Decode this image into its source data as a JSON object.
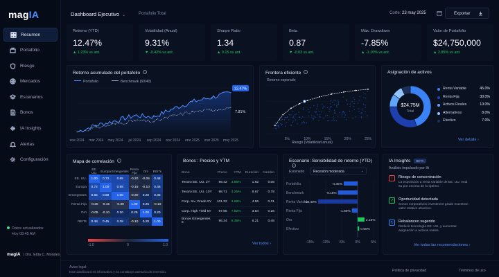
{
  "app": {
    "logo_main": "mag",
    "logo_accent": "IA"
  },
  "sidebar": {
    "items": [
      {
        "label": "Resumen",
        "icon": "grid-icon"
      },
      {
        "label": "Portafolio",
        "icon": "briefcase-icon"
      },
      {
        "label": "Riesgo",
        "icon": "shield-icon"
      },
      {
        "label": "Mercados",
        "icon": "globe-icon"
      },
      {
        "label": "Escenarios",
        "icon": "layers-icon"
      },
      {
        "label": "Bonos",
        "icon": "document-icon"
      },
      {
        "label": "IA Insights",
        "icon": "sparkle-icon"
      },
      {
        "label": "Alertas",
        "icon": "bell-icon"
      },
      {
        "label": "Configuración",
        "icon": "gear-icon"
      }
    ],
    "status_line1": "Datos actualizados",
    "status_line2": "Hoy 08:45 AM",
    "user_brand": "magIA",
    "user_name": "Dra. Elda C. Morales"
  },
  "topbar": {
    "title": "Dashboard Ejecutivo",
    "subtitle": "Portafolio Total",
    "date_label": "Corte:",
    "date_value": "23 may 2025",
    "export_label": "Exportar"
  },
  "kpis": [
    {
      "label": "Retorno (YTD)",
      "value": "12.47%",
      "change": "▲ 1.23% vs ant."
    },
    {
      "label": "Volatilidad (Anual)",
      "value": "9.31%",
      "change": "▼ -0.42% vs ant."
    },
    {
      "label": "Sharpe Ratio",
      "value": "1.34",
      "change": "▲ 0.15 vs ant."
    },
    {
      "label": "Beta",
      "value": "0.87",
      "change": "▼ -0.03 vs ant."
    },
    {
      "label": "Máx. Drawdown",
      "value": "-7.85%",
      "change": "▲ -1.10% vs ant."
    },
    {
      "label": "Valor de Portafolio",
      "value": "$24,750,000",
      "change": "▲ 2.85% vs ant."
    }
  ],
  "cumulative": {
    "title": "Retorno acumulado del portafolio",
    "legend_a": "Portafolio",
    "legend_b": "Benchmark (60/40)",
    "end_a": "12.47%",
    "end_b": "7.81%"
  },
  "frontier": {
    "title": "Frontera eficiente",
    "ylabel": "Retorno esperado",
    "xlabel": "Riesgo (Volatilidad anual)"
  },
  "allocation": {
    "title": "Asignación de activos",
    "center_value": "$24.75M",
    "center_label": "Total",
    "link": "Ver detalle ›"
  },
  "correlation": {
    "title": "Mapa de correlación",
    "cols": [
      "EE. UU.",
      "Europa",
      "Emergentes",
      "Renta Fija",
      "Oro",
      "REITs"
    ],
    "rows": [
      {
        "label": "EE. UU.",
        "values": [
          "1.00",
          "0.72",
          "0.65",
          "-0.20",
          "-0.05",
          "0.48"
        ]
      },
      {
        "label": "Europa",
        "values": [
          "0.72",
          "1.00",
          "0.68",
          "-0.15",
          "-0.10",
          "0.45"
        ]
      },
      {
        "label": "Emergentes",
        "values": [
          "0.65",
          "0.68",
          "1.00",
          "-0.30",
          "0.20",
          "0.35"
        ]
      },
      {
        "label": "Renta Fija",
        "values": [
          "-0.20",
          "-0.15",
          "-0.30",
          "1.00",
          "0.25",
          "-0.10"
        ]
      },
      {
        "label": "Oro",
        "values": [
          "-0.05",
          "-0.10",
          "0.20",
          "0.25",
          "1.00",
          "0.20"
        ]
      },
      {
        "label": "REITs",
        "values": [
          "0.48",
          "0.45",
          "0.35",
          "-0.10",
          "0.20",
          "1.00"
        ]
      }
    ],
    "scale_min": "-1.0",
    "scale_mid": "0",
    "scale_max": "1.0"
  },
  "bonds": {
    "title": "Bonos : Precios y YTM",
    "headers": [
      "Bono",
      "Precio",
      "YTM",
      "Duración",
      "Cambio"
    ],
    "rows": [
      [
        "Tesoro EE. UU. 2Y",
        "99.42",
        "3.85%",
        "1.92",
        "0.08"
      ],
      [
        "Tesoro EE. UU. 10Y",
        "98.71",
        "4.25%",
        "8.67",
        "0.78"
      ],
      [
        "Corp. Inv. Grade 5Y",
        "101.32",
        "4.68%",
        "4.56",
        "0.31"
      ],
      [
        "Corp. High Yield 5Y",
        "97.85",
        "7.92%",
        "3.84",
        "0.26"
      ],
      [
        "Bonos Emergentes 5",
        "96.34",
        "6.35%",
        "6.21",
        "0.48"
      ]
    ],
    "link": "Ver todos ›"
  },
  "scenario": {
    "title": "Escenario: Sensibilidad de retorno (YTD)",
    "select_label": "Escenario",
    "select_value": "Recesión moderada"
  },
  "insights": {
    "title": "IA Insights",
    "badge": "BETA",
    "subtitle": "Análisis impulsado por IA",
    "items": [
      {
        "title": "Riesgo de concentración",
        "line1": "La exposición a renta variable de EE. UU. está",
        "line2": "61 por encima de lo óptimo.",
        "icon": "alert-icon"
      },
      {
        "title": "Oportunidad detectada",
        "line1": "Sonos corporativos investment grade muestran",
        "line2": "valor relativo atractivo.",
        "icon": "trend-icon"
      },
      {
        "title": "Rebalanceo sugerido",
        "line1": "Reducir tecnología EE. UU. y aumentar",
        "line2": "asignación a activos reales.",
        "icon": "refresh-icon"
      }
    ],
    "link": "Ver todas las recomendaciones ›"
  },
  "footer": {
    "disclaimer_title": "Aviso legal:",
    "disclaimer_text": "Este dashboard es informativo y no constituye asesoría de inversión.",
    "privacy": "Política de privacidad",
    "terms": "Términos de uso"
  },
  "chart_data": [
    {
      "type": "line",
      "title": "Retorno acumulado del portafolio",
      "x": [
        "ene 2024",
        "mar 2024",
        "may 2024",
        "jul 2024",
        "sep 2024",
        "nov 2024",
        "ene 2025",
        "mar 2025",
        "may 2025"
      ],
      "series": [
        {
          "name": "Portafolio",
          "values": [
            0,
            2.1,
            3.5,
            5.2,
            4.8,
            7.4,
            9.6,
            11.0,
            12.47
          ]
        },
        {
          "name": "Benchmark (60/40)",
          "values": [
            0,
            1.4,
            2.5,
            3.6,
            3.3,
            5.1,
            6.4,
            7.0,
            7.81
          ]
        }
      ],
      "colors": {
        "Portafolio": "#4d8dff",
        "Benchmark (60/40)": "#9aa6bf"
      }
    },
    {
      "type": "scatter",
      "title": "Frontera eficiente",
      "xlabel": "Riesgo (Volatilidad anual)",
      "ylabel": "Retorno esperado",
      "x_ticks": [
        "5%",
        "10%",
        "15%",
        "20%",
        "25%"
      ],
      "xlim": [
        0,
        25
      ],
      "curve": [
        [
          2,
          2
        ],
        [
          4,
          4.7
        ],
        [
          6,
          6.3
        ],
        [
          8,
          7.4
        ],
        [
          10,
          8.2
        ],
        [
          13,
          9.1
        ],
        [
          16,
          9.8
        ],
        [
          19,
          10.3
        ],
        [
          22,
          10.7
        ],
        [
          25,
          11
        ]
      ],
      "portfolio_point": [
        9.31,
        8.0
      ]
    },
    {
      "type": "pie",
      "title": "Asignación de activos",
      "slices": [
        {
          "label": "Renta Variable",
          "value": 45.0,
          "display": "45.0%",
          "color": "#3b82f6"
        },
        {
          "label": "Renta Fija",
          "value": 30.0,
          "display": "30.0%",
          "color": "#1e40af"
        },
        {
          "label": "Activos Reales",
          "value": 10.0,
          "display": "10.0%",
          "color": "#60a5fa"
        },
        {
          "label": "Alternativos",
          "value": 8.0,
          "display": "8.0%",
          "color": "#93c5fd"
        },
        {
          "label": "Efectivo",
          "value": 7.0,
          "display": "7.0%",
          "color": "#1d2f57"
        }
      ]
    },
    {
      "type": "bar",
      "title": "Escenario: Sensibilidad de retorno (YTD)",
      "categories": [
        "Portafolio",
        "Benchmark",
        "Renta Variable",
        "Renta Fija",
        "Oro",
        "Efectivo"
      ],
      "values": [
        -4.35,
        -6.15,
        -12.4,
        -1.8,
        2.15,
        0.5
      ],
      "labels": [
        "-4.35%",
        "-6.15%",
        "-12.40%",
        "-1.80%",
        "2.15%",
        "0.50%"
      ],
      "x_ticks": [
        "-15%",
        "-10%",
        "-5%",
        "0%",
        "5%"
      ],
      "xlim": [
        -15,
        5
      ]
    }
  ]
}
